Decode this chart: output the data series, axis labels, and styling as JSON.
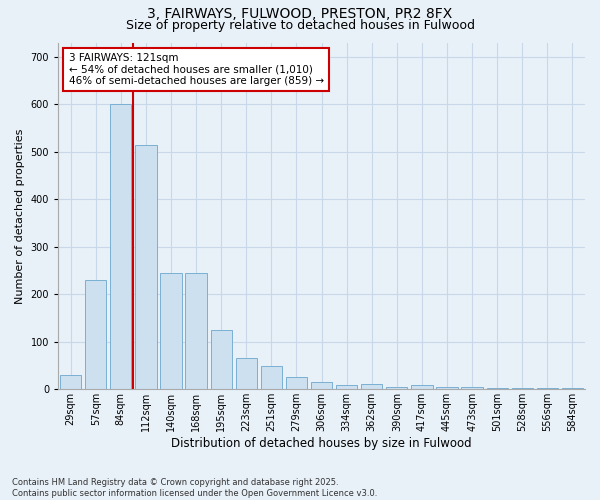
{
  "title1": "3, FAIRWAYS, FULWOOD, PRESTON, PR2 8FX",
  "title2": "Size of property relative to detached houses in Fulwood",
  "xlabel": "Distribution of detached houses by size in Fulwood",
  "ylabel": "Number of detached properties",
  "categories": [
    "29sqm",
    "57sqm",
    "84sqm",
    "112sqm",
    "140sqm",
    "168sqm",
    "195sqm",
    "223sqm",
    "251sqm",
    "279sqm",
    "306sqm",
    "334sqm",
    "362sqm",
    "390sqm",
    "417sqm",
    "445sqm",
    "473sqm",
    "501sqm",
    "528sqm",
    "556sqm",
    "584sqm"
  ],
  "values": [
    30,
    230,
    600,
    515,
    245,
    245,
    125,
    65,
    50,
    25,
    15,
    10,
    12,
    5,
    10,
    5,
    5,
    3,
    2,
    2,
    3
  ],
  "bar_color": "#cde0f0",
  "bar_edge_color": "#7ab0d4",
  "grid_color": "#c8d8e8",
  "annotation_text": "3 FAIRWAYS: 121sqm\n← 54% of detached houses are smaller (1,010)\n46% of semi-detached houses are larger (859) →",
  "annotation_box_color": "#ffffff",
  "annotation_box_edge": "#cc0000",
  "red_line_color": "#cc0000",
  "bg_color": "#e8f0f8",
  "footer": "Contains HM Land Registry data © Crown copyright and database right 2025.\nContains public sector information licensed under the Open Government Licence v3.0.",
  "ylim": [
    0,
    730
  ],
  "yticks": [
    0,
    100,
    200,
    300,
    400,
    500,
    600,
    700
  ],
  "title1_fontsize": 10,
  "title2_fontsize": 9,
  "xlabel_fontsize": 8.5,
  "ylabel_fontsize": 8,
  "tick_fontsize": 7,
  "footer_fontsize": 6,
  "annot_fontsize": 7.5
}
